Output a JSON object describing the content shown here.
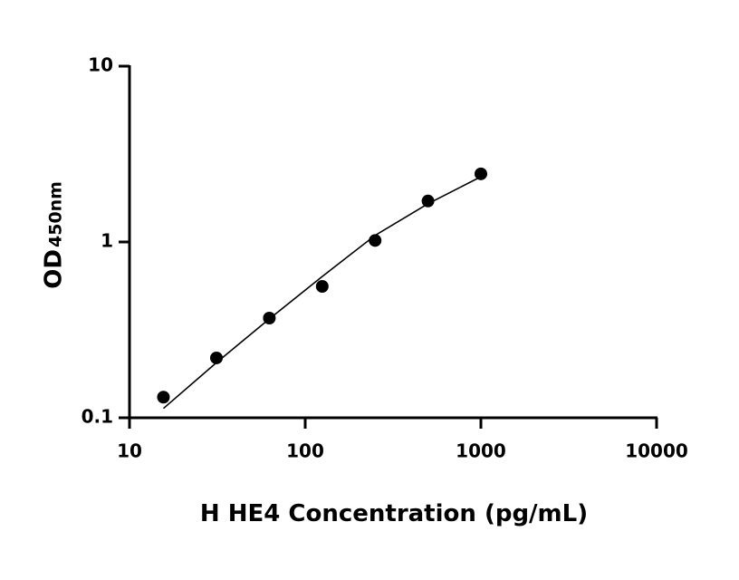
{
  "chart_data": {
    "type": "scatter",
    "x_label": "H HE4 Concentration (pg/mL)",
    "y_label": "OD",
    "y_label_subscript": "450nm",
    "x_scale": "log",
    "y_scale": "log",
    "xlim": [
      10,
      10000
    ],
    "ylim": [
      0.1,
      10
    ],
    "xticks": [
      10,
      100,
      1000,
      10000
    ],
    "yticks": [
      0.1,
      1,
      10
    ],
    "grid": false,
    "x": [
      15.6,
      31.25,
      62.5,
      125,
      250,
      500,
      1000
    ],
    "series": [
      {
        "color": "#000000",
        "values": [
          0.131,
          0.219,
          0.369,
          0.559,
          1.02,
          1.71,
          2.44
        ]
      }
    ],
    "fit": {
      "color": "#000000",
      "x": [
        15.6,
        31.25,
        62.5,
        125,
        250,
        500,
        1000
      ],
      "values": [
        0.113,
        0.206,
        0.365,
        0.636,
        1.09,
        1.65,
        2.35
      ]
    }
  }
}
